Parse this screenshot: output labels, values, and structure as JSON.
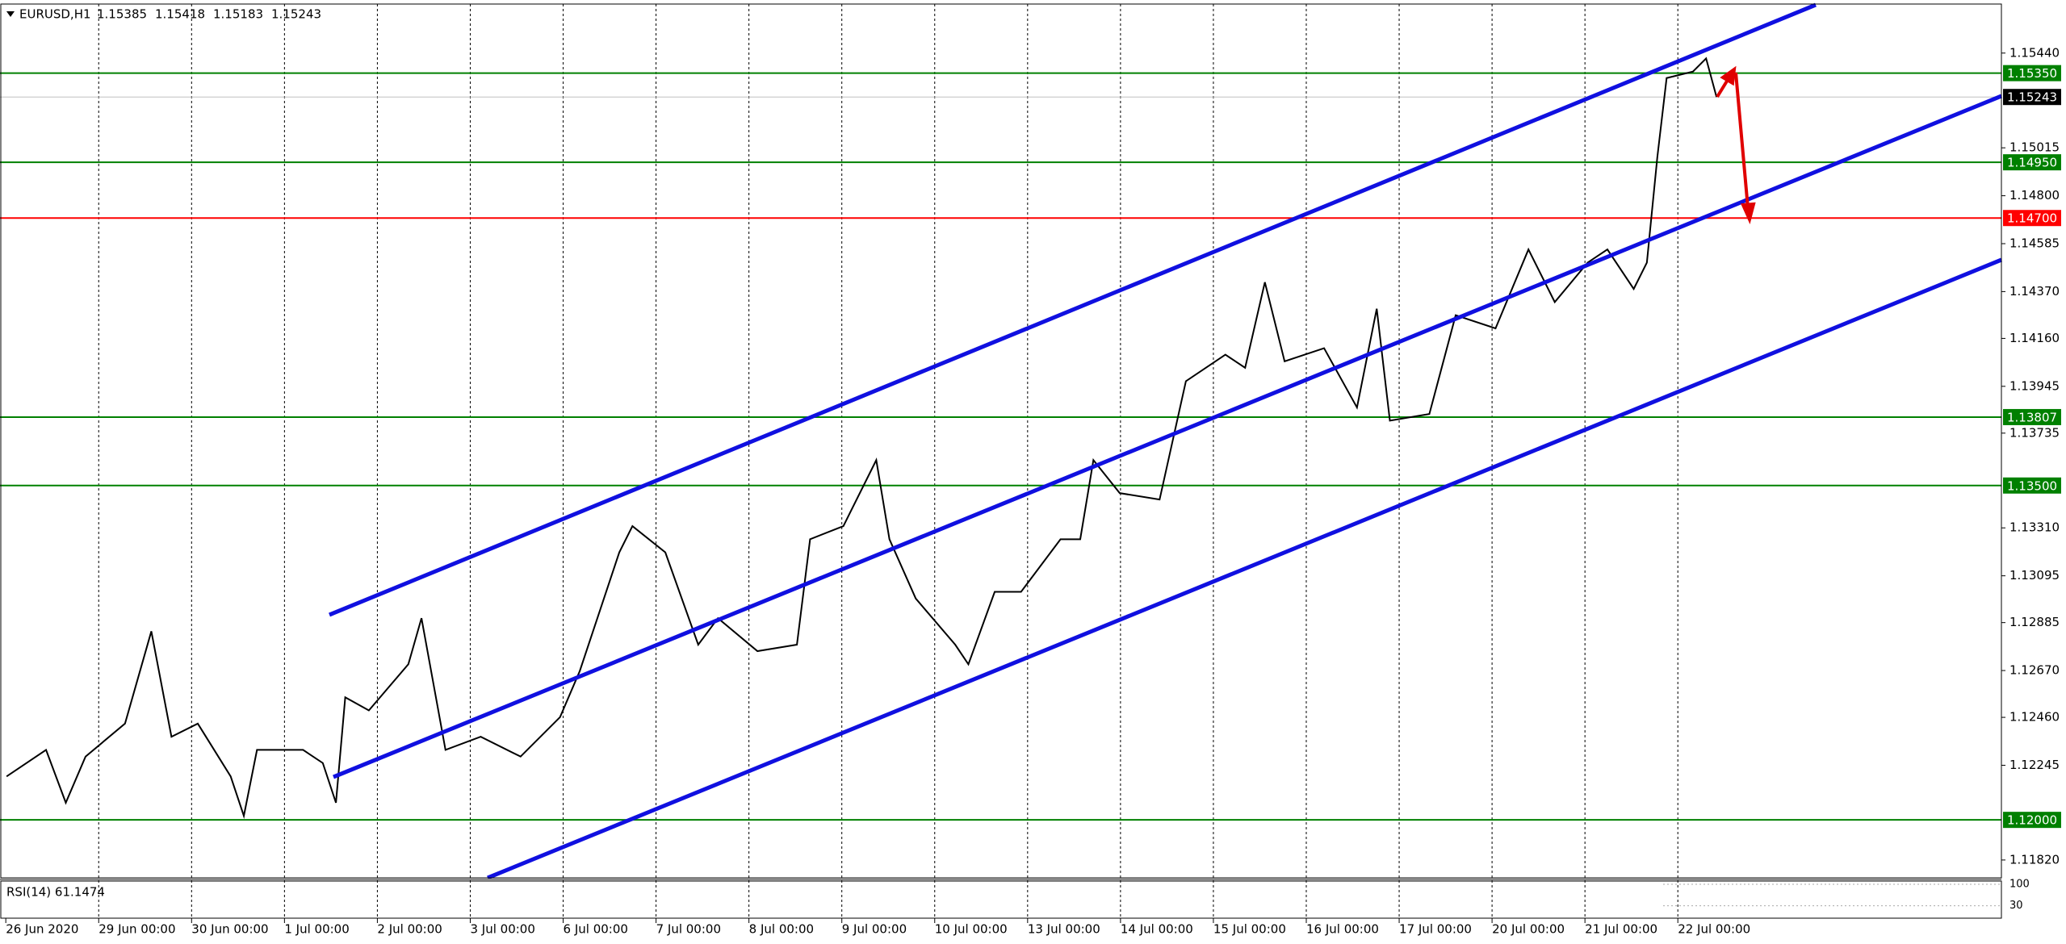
{
  "chart_data": {
    "type": "line",
    "symbol": "EURUSD,H1",
    "ohlc": [
      1.15385,
      1.15418,
      1.15183,
      1.15243
    ],
    "color": "#000000",
    "x": [
      0.2,
      10.4,
      15.5,
      20.6,
      30.8,
      37.6,
      42.8,
      49.6,
      58.1,
      61.5,
      64.9,
      76.8,
      81.9,
      85.3,
      87.7,
      93.8,
      104.0,
      107.4,
      113.6,
      122.7,
      133.0,
      143.2,
      148.3,
      158.5,
      161.9,
      170.4,
      178.9,
      184.0,
      194.2,
      204.4,
      207.8,
      216.4,
      224.9,
      228.3,
      235.1,
      245.3,
      248.7,
      255.5,
      262.3,
      272.5,
      277.6,
      281.0,
      287.8,
      298.1,
      304.9,
      315.1,
      320.2,
      325.3,
      330.4,
      340.6,
      349.1,
      354.2,
      357.6,
      367.8,
      374.6,
      384.9,
      393.4,
      400.2,
      408.7,
      413.8,
      420.6,
      424.0,
      426.7,
      429.1,
      435.9,
      439.3,
      442.0
    ],
    "values": [
      1.12195,
      1.12314,
      1.12077,
      1.12284,
      1.12432,
      1.12846,
      1.12373,
      1.12432,
      1.12195,
      1.12018,
      1.12314,
      1.12314,
      1.12255,
      1.12077,
      1.1255,
      1.12491,
      1.12698,
      1.12905,
      1.12314,
      1.12373,
      1.12284,
      1.12461,
      1.12668,
      1.132,
      1.13318,
      1.132,
      1.12786,
      1.12905,
      1.12757,
      1.12786,
      1.13259,
      1.13318,
      1.13614,
      1.13259,
      1.12993,
      1.12786,
      1.12698,
      1.13023,
      1.13023,
      1.13259,
      1.13259,
      1.13614,
      1.13466,
      1.13437,
      1.13968,
      1.14087,
      1.14028,
      1.14412,
      1.14057,
      1.14116,
      1.1385,
      1.14293,
      1.13791,
      1.13821,
      1.14264,
      1.14205,
      1.14559,
      1.14323,
      1.145,
      1.14559,
      1.14382,
      1.145,
      1.14973,
      1.15328,
      1.15357,
      1.15416,
      1.15243
    ],
    "xlim": [
      -1.5,
      515.6
    ],
    "xticks": [
      {
        "value": 0,
        "label": "26 Jun 2020"
      },
      {
        "value": 24,
        "label": "29 Jun 00:00"
      },
      {
        "value": 48,
        "label": "30 Jun 00:00"
      },
      {
        "value": 72,
        "label": "1 Jul 00:00"
      },
      {
        "value": 96,
        "label": "2 Jul 00:00"
      },
      {
        "value": 120,
        "label": "3 Jul 00:00"
      },
      {
        "value": 144,
        "label": "6 Jul 00:00"
      },
      {
        "value": 168,
        "label": "7 Jul 00:00"
      },
      {
        "value": 192,
        "label": "8 Jul 00:00"
      },
      {
        "value": 216,
        "label": "9 Jul 00:00"
      },
      {
        "value": 240,
        "label": "10 Jul 00:00"
      },
      {
        "value": 264,
        "label": "13 Jul 00:00"
      },
      {
        "value": 288,
        "label": "14 Jul 00:00"
      },
      {
        "value": 312,
        "label": "15 Jul 00:00"
      },
      {
        "value": 336,
        "label": "16 Jul 00:00"
      },
      {
        "value": 360,
        "label": "17 Jul 00:00"
      },
      {
        "value": 384,
        "label": "20 Jul 00:00"
      },
      {
        "value": 408,
        "label": "21 Jul 00:00"
      },
      {
        "value": 432,
        "label": "22 Jul 00:00"
      }
    ],
    "ylim": [
      1.1174,
      1.1566
    ],
    "yticks": [
      {
        "value": 1.1544,
        "label": "1.15440"
      },
      1.15015,
      {
        "value": 1.148,
        "label": "1.14800"
      },
      1.14585,
      {
        "value": 1.1437,
        "label": "1.14370"
      },
      {
        "value": 1.1416,
        "label": "1.14160"
      },
      1.13945,
      1.13735,
      {
        "value": 1.1331,
        "label": "1.13310"
      },
      1.13095,
      1.12885,
      {
        "value": 1.1267,
        "label": "1.12670"
      },
      {
        "value": 1.1246,
        "label": "1.12460"
      },
      1.12245,
      {
        "value": 1.1182,
        "label": "1.11820"
      }
    ],
    "levels": [
      {
        "value": 1.1535,
        "label": "1.15350",
        "color": "#008000"
      },
      {
        "value": 1.1495,
        "label": "1.14950",
        "color": "#008000"
      },
      {
        "value": 1.147,
        "label": "1.14700",
        "color": "#ff0000"
      },
      {
        "value": 1.13807,
        "label": "1.13807",
        "color": "#008000"
      },
      {
        "value": 1.135,
        "label": "1.13500",
        "color": "#008000"
      },
      {
        "value": 1.12,
        "label": "1.12000",
        "color": "#008000"
      }
    ],
    "current_price": 1.15243,
    "grid": true,
    "rsi": {
      "label": "RSI(14) 61.1474",
      "ylim": [
        0,
        100
      ],
      "yticks": [
        100,
        30
      ]
    }
  }
}
